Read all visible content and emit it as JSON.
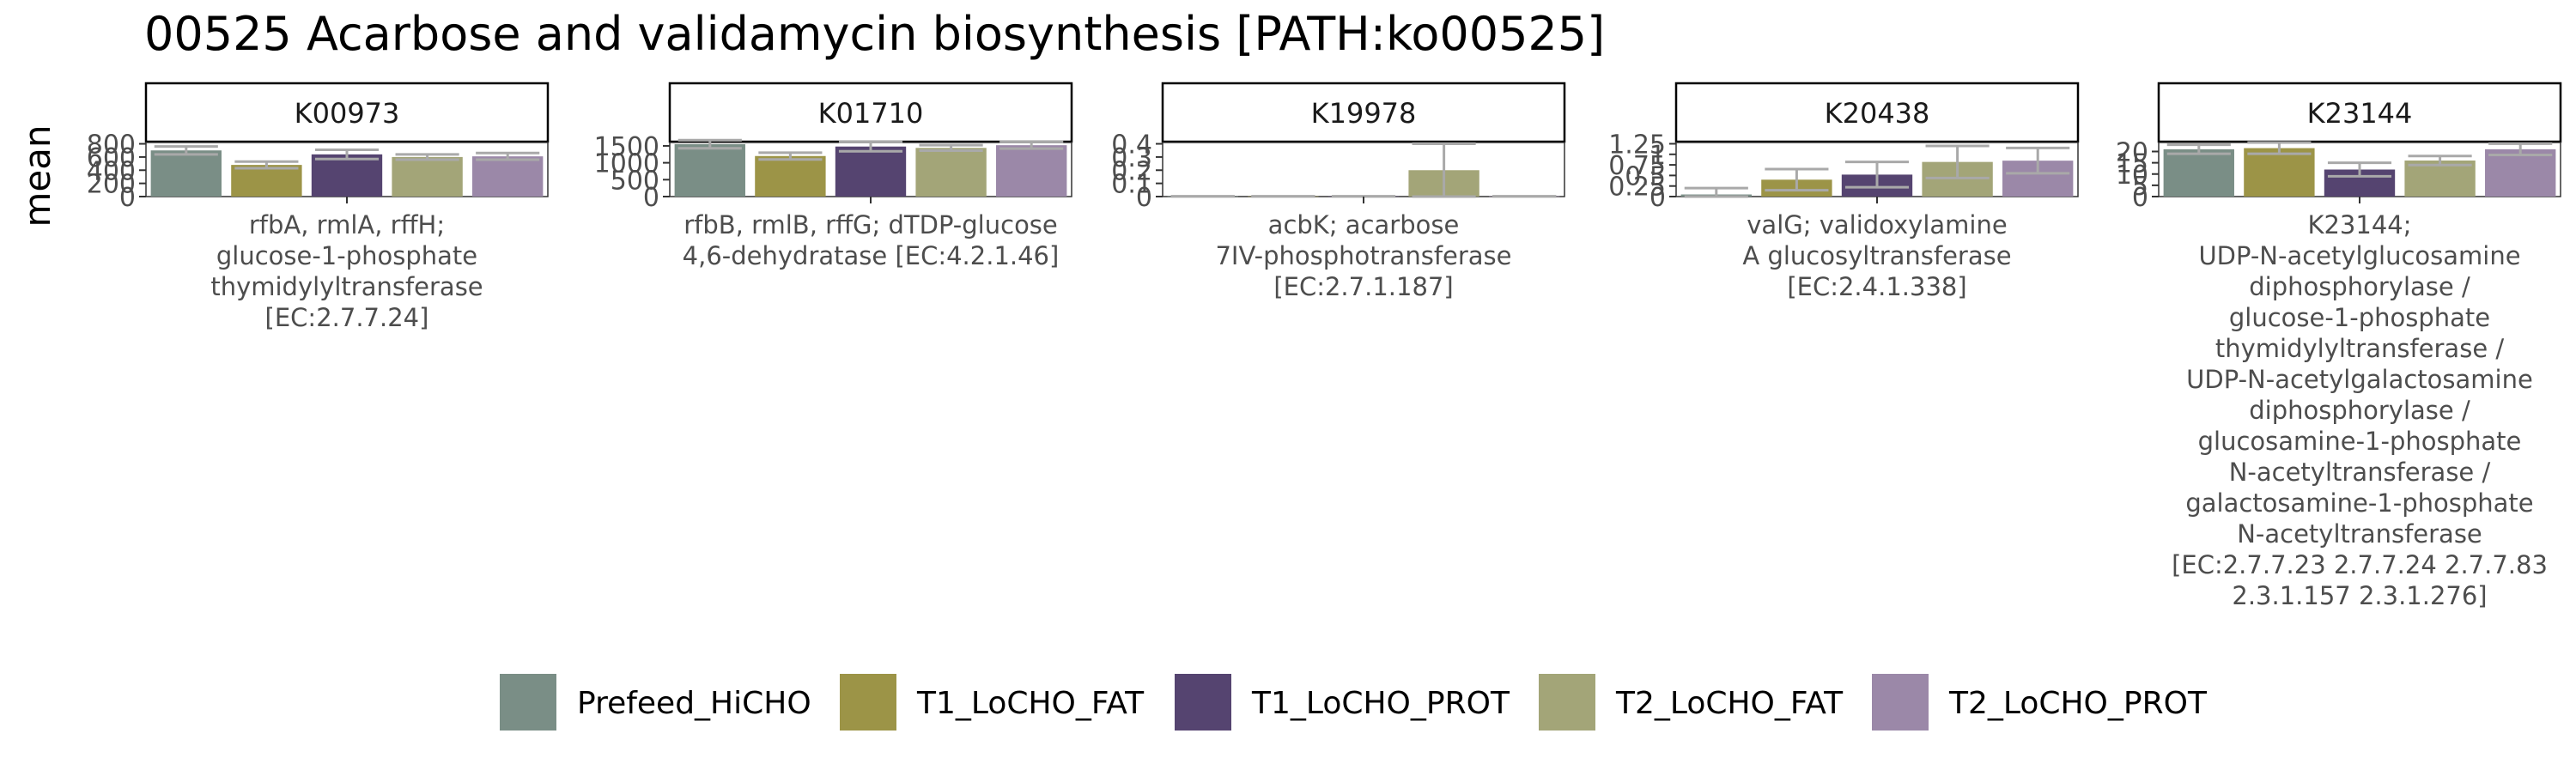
{
  "title": "00525 Acarbose and validamycin biosynthesis [PATH:ko00525]",
  "ylabel": "mean",
  "legend": {
    "position": "bottom",
    "items": [
      {
        "label": "Prefeed_HiCHO",
        "color": "#7a8e86"
      },
      {
        "label": "T1_LoCHO_FAT",
        "color": "#9c9447"
      },
      {
        "label": "T1_LoCHO_PROT",
        "color": "#554470"
      },
      {
        "label": "T2_LoCHO_FAT",
        "color": "#a3a578"
      },
      {
        "label": "T2_LoCHO_PROT",
        "color": "#9b88a8"
      }
    ]
  },
  "chart_data": [
    {
      "type": "bar",
      "panel": "K00973",
      "caption": [
        "rfbA, rmlA, rffH;",
        "glucose-1-phosphate",
        "thymidylyltransferase",
        "[EC:2.7.7.24]"
      ],
      "categories": [
        "Prefeed_HiCHO",
        "T1_LoCHO_FAT",
        "T1_LoCHO_PROT",
        "T2_LoCHO_FAT",
        "T2_LoCHO_PROT"
      ],
      "values": [
        700,
        480,
        640,
        600,
        610
      ],
      "errors": [
        60,
        50,
        70,
        40,
        50
      ],
      "yticks": [
        0,
        200,
        400,
        600,
        800
      ],
      "ylim": [
        0,
        820
      ]
    },
    {
      "type": "bar",
      "panel": "K01710",
      "caption": [
        "rfbB, rmlB, rffG; dTDP-glucose",
        "4,6-dehydratase [EC:4.2.1.46]"
      ],
      "categories": [
        "Prefeed_HiCHO",
        "T1_LoCHO_FAT",
        "T1_LoCHO_PROT",
        "T2_LoCHO_FAT",
        "T2_LoCHO_PROT"
      ],
      "values": [
        1550,
        1200,
        1480,
        1440,
        1520
      ],
      "errors": [
        120,
        100,
        140,
        80,
        100
      ],
      "yticks": [
        0,
        500,
        1000,
        1500
      ],
      "ylim": [
        0,
        1600
      ]
    },
    {
      "type": "bar",
      "panel": "K19978",
      "caption": [
        "acbK; acarbose",
        "7IV-phosphotransferase",
        "[EC:2.7.1.187]"
      ],
      "categories": [
        "Prefeed_HiCHO",
        "T1_LoCHO_FAT",
        "T1_LoCHO_PROT",
        "T2_LoCHO_FAT",
        "T2_LoCHO_PROT"
      ],
      "values": [
        0.002,
        0.002,
        0.002,
        0.2,
        0.002
      ],
      "errors": [
        0,
        0,
        0,
        0.2,
        0
      ],
      "yticks": [
        0.0,
        0.1,
        0.2,
        0.3,
        0.4
      ],
      "ylim": [
        0,
        0.41
      ]
    },
    {
      "type": "bar",
      "panel": "K20438",
      "caption": [
        "valG; validoxylamine",
        "A glucosyltransferase",
        "[EC:2.4.1.338]"
      ],
      "categories": [
        "Prefeed_HiCHO",
        "T1_LoCHO_FAT",
        "T1_LoCHO_PROT",
        "T2_LoCHO_FAT",
        "T2_LoCHO_PROT"
      ],
      "values": [
        0.05,
        0.4,
        0.52,
        0.82,
        0.85
      ],
      "errors": [
        0.15,
        0.25,
        0.3,
        0.38,
        0.3
      ],
      "yticks": [
        0.0,
        0.25,
        0.5,
        0.75,
        1.0,
        1.25
      ],
      "ylim": [
        0,
        1.28
      ]
    },
    {
      "type": "bar",
      "panel": "K23144",
      "caption": [
        "K23144;",
        "UDP-N-acetylglucosamine",
        "diphosphorylase /",
        "glucose-1-phosphate",
        "thymidylyltransferase /",
        "UDP-N-acetylgalactosamine",
        "diphosphorylase /",
        "glucosamine-1-phosphate",
        "N-acetyltransferase /",
        "galactosamine-1-phosphate",
        "N-acetyltransferase",
        "[EC:2.7.7.23 2.7.7.24 2.7.7.83",
        "2.3.1.157 2.3.1.276]"
      ],
      "categories": [
        "Prefeed_HiCHO",
        "T1_LoCHO_FAT",
        "T1_LoCHO_PROT",
        "T2_LoCHO_FAT",
        "T2_LoCHO_PROT"
      ],
      "values": [
        21,
        21.5,
        12,
        16,
        21
      ],
      "errors": [
        2,
        2.5,
        3,
        2,
        2.5
      ],
      "yticks": [
        0,
        5,
        10,
        15,
        20
      ],
      "ylim": [
        0,
        24
      ]
    }
  ]
}
